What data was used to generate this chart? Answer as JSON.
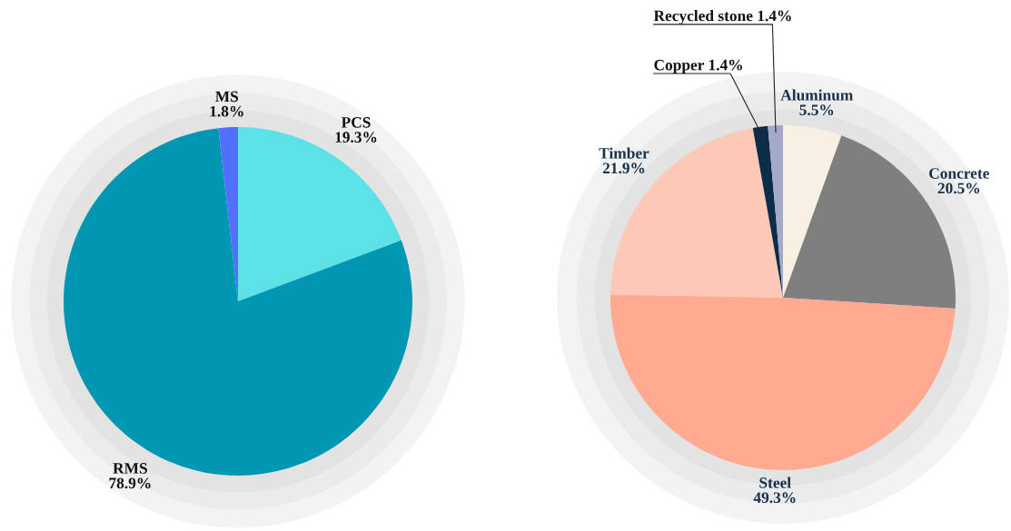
{
  "chart_data": [
    {
      "type": "pie",
      "categories": [
        "PCS",
        "RMS",
        "MS"
      ],
      "values": [
        19.3,
        78.9,
        1.8
      ],
      "colors": [
        "#5ce1e6",
        "#0097b2",
        "#5170ff"
      ],
      "value_labels": [
        "19.3%",
        "78.9%",
        "1.8%"
      ]
    },
    {
      "type": "pie",
      "categories": [
        "Aluminum",
        "Concrete",
        "Steel",
        "Timber",
        "Copper",
        "Recycled stone"
      ],
      "values": [
        5.5,
        20.5,
        49.3,
        21.9,
        1.4,
        1.4
      ],
      "colors": [
        "#f8f1e3",
        "#7f7f7f",
        "#ffaa91",
        "#fdc9b7",
        "#0c2d48",
        "#a4a9c9"
      ],
      "value_labels": [
        "5.5%",
        "20.5%",
        "49.3%",
        "21.9%",
        "1.4%",
        "1.4%"
      ]
    }
  ]
}
